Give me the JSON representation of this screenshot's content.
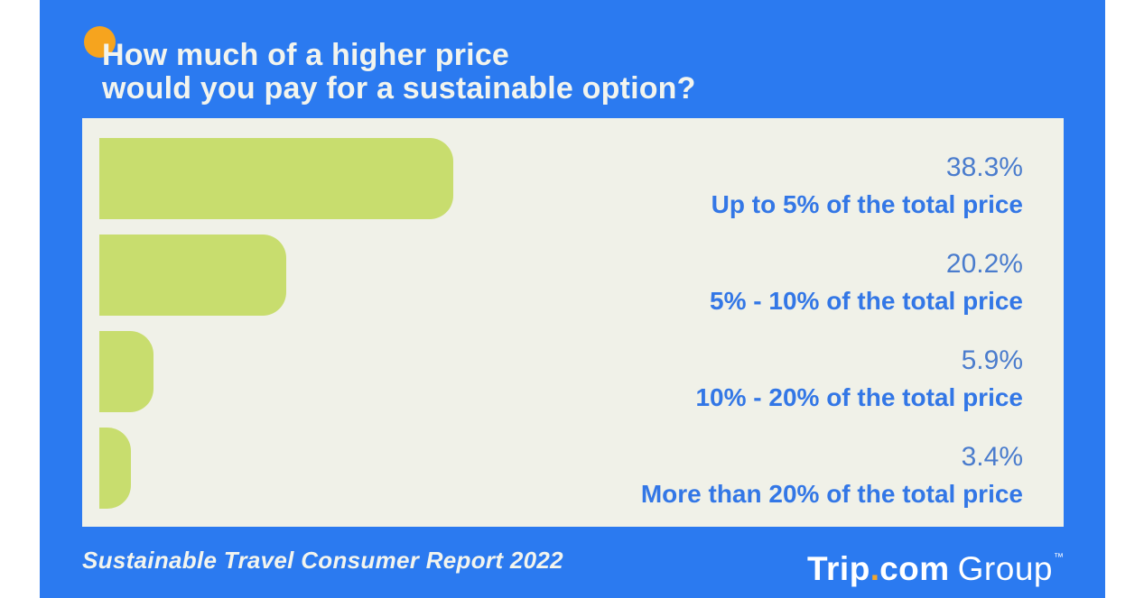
{
  "header": {
    "title_line1": "How much of a higher price",
    "title_line2": "would you pay for a sustainable option?"
  },
  "chart_data": {
    "type": "bar",
    "orientation": "horizontal",
    "title": "How much of a higher price would you pay for a sustainable option?",
    "categories": [
      "Up to 5% of the total price",
      "5% - 10% of the total price",
      "10% - 20% of the total price",
      "More than 20% of the total price"
    ],
    "values": [
      38.3,
      20.2,
      5.9,
      3.4
    ],
    "value_labels": [
      "38.3%",
      "20.2%",
      "5.9%",
      "3.4%"
    ],
    "unit": "%",
    "xlim": [
      0,
      100
    ],
    "grid": false,
    "legend": false,
    "bar_color": "#c8dd6e",
    "value_label_color": "#4a7ccd",
    "category_label_color": "#3377e6"
  },
  "footer": {
    "report_title": "Sustainable Travel Consumer Report 2022",
    "logo": {
      "trip": "Trip",
      "dot": ".",
      "com": "com",
      "group": "Group",
      "tm": "™"
    }
  },
  "colors": {
    "page_background": "#ffffff",
    "slide_blue": "#2b7af0",
    "panel_eggshell": "#f0f1e8",
    "bar_green": "#c8dd6e",
    "accent_orange": "#f6a41e",
    "title_white": "#f2f4ee"
  }
}
